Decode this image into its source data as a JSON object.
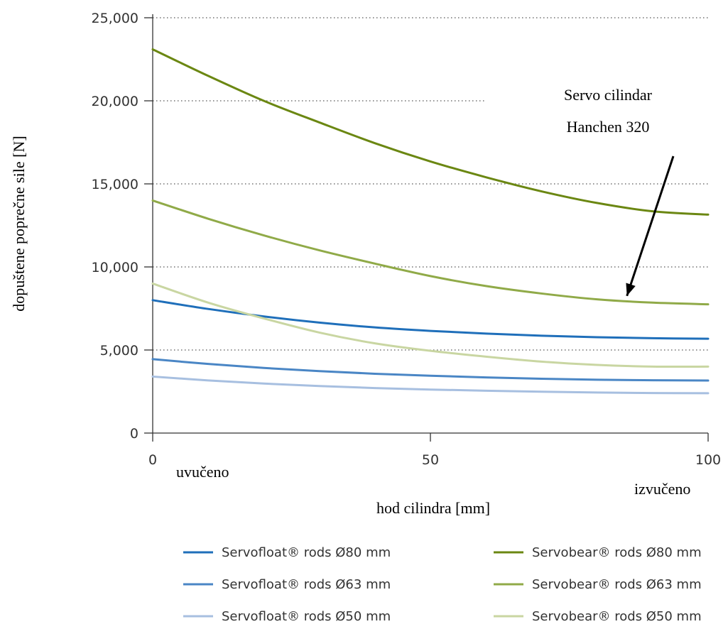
{
  "chart_data": {
    "type": "line",
    "xlabel": "hod cilindra [mm]",
    "ylabel": "dopuštene poprečne sile [N]",
    "xlim": [
      0,
      100
    ],
    "ylim": [
      0,
      25000
    ],
    "x_ticks": [
      0,
      50,
      100
    ],
    "x_tick_labels": [
      "0",
      "50",
      "100"
    ],
    "y_ticks": [
      0,
      5000,
      10000,
      15000,
      20000,
      25000
    ],
    "y_tick_labels": [
      "0",
      "5,000",
      "10,000",
      "15,000",
      "20,000",
      "25,000"
    ],
    "grid": "horizontal dotted",
    "legend_position": "bottom",
    "annotations": {
      "start_label": "uvučeno",
      "end_label": "izvučeno",
      "callout_line1": "Servo cilindar",
      "callout_line2": "Hanchen 320",
      "callout_arrow_target": {
        "x": 85,
        "y": 8000
      }
    },
    "x": [
      0,
      10,
      20,
      30,
      40,
      50,
      60,
      70,
      80,
      90,
      100
    ],
    "series": [
      {
        "name": "Servofloat® rods Ø80 mm",
        "color": "#1f6fba",
        "values": [
          8000,
          7470,
          7020,
          6650,
          6360,
          6150,
          5990,
          5860,
          5770,
          5710,
          5680
        ]
      },
      {
        "name": "Servofloat® rods Ø63 mm",
        "color": "#4a86c5",
        "values": [
          4450,
          4160,
          3920,
          3730,
          3570,
          3450,
          3350,
          3270,
          3210,
          3180,
          3160
        ]
      },
      {
        "name": "Servofloat® rods Ø50 mm",
        "color": "#a7bfe0",
        "values": [
          3400,
          3170,
          2980,
          2830,
          2710,
          2620,
          2550,
          2490,
          2440,
          2410,
          2400
        ]
      },
      {
        "name": "Servobear® rods Ø80 mm",
        "color": "#6b8712",
        "values": [
          23100,
          21500,
          20000,
          18700,
          17450,
          16350,
          15400,
          14550,
          13850,
          13350,
          13150
        ]
      },
      {
        "name": "Servobear® rods Ø63 mm",
        "color": "#90aa48",
        "values": [
          14000,
          12900,
          11900,
          11000,
          10200,
          9450,
          8850,
          8400,
          8050,
          7850,
          7750
        ]
      },
      {
        "name": "Servobear® rods Ø50 mm",
        "color": "#c9d6a2",
        "values": [
          9000,
          7850,
          6900,
          6050,
          5400,
          4950,
          4600,
          4300,
          4100,
          4000,
          4000
        ]
      }
    ]
  }
}
